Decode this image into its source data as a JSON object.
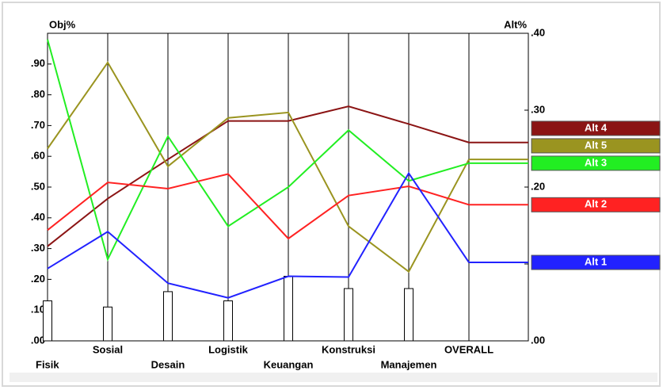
{
  "chart_data": {
    "type": "line",
    "y_label": "Obj%",
    "y2_label": "Alt%",
    "categories": [
      "Fisik",
      "Sosial",
      "Desain",
      "Logistik",
      "Keuangan",
      "Konstruksi",
      "Manajemen",
      "OVERALL"
    ],
    "bar_values": [
      0.13,
      0.11,
      0.16,
      0.13,
      0.21,
      0.17,
      0.17
    ],
    "ylim": [
      0,
      1
    ],
    "yticks": [
      {
        "value": 0,
        "label": ".00"
      },
      {
        "value": 0.1,
        "label": ".10"
      },
      {
        "value": 0.2,
        "label": ".20"
      },
      {
        "value": 0.3,
        "label": ".30"
      },
      {
        "value": 0.4,
        "label": ".40"
      },
      {
        "value": 0.5,
        "label": ".50"
      },
      {
        "value": 0.6,
        "label": ".60"
      },
      {
        "value": 0.7,
        "label": ".70"
      },
      {
        "value": 0.8,
        "label": ".80"
      },
      {
        "value": 0.9,
        "label": ".90"
      }
    ],
    "y2lim": [
      0,
      0.4
    ],
    "y2ticks": [
      {
        "value": 0,
        "label": ".00"
      },
      {
        "value": 0.1,
        "label": ".10"
      },
      {
        "value": 0.2,
        "label": ".20"
      },
      {
        "value": 0.3,
        "label": ".30"
      },
      {
        "value": 0.4,
        "label": ".40"
      }
    ],
    "series": [
      {
        "name": "Alt 4",
        "color": "#8b1414",
        "axis": "y2",
        "values": [
          0.123,
          0.185,
          0.236,
          0.286,
          0.286,
          0.305,
          0.282,
          0.258
        ]
      },
      {
        "name": "Alt 5",
        "color": "#9a9420",
        "axis": "y2",
        "values": [
          0.25,
          0.362,
          0.227,
          0.29,
          0.297,
          0.149,
          0.09,
          0.236
        ]
      },
      {
        "name": "Alt 3",
        "color": "#22ee22",
        "axis": "y2",
        "values": [
          0.392,
          0.106,
          0.266,
          0.149,
          0.2,
          0.274,
          0.208,
          0.231
        ]
      },
      {
        "name": "Alt 2",
        "color": "#ff2222",
        "axis": "y2",
        "values": [
          0.144,
          0.206,
          0.198,
          0.217,
          0.133,
          0.189,
          0.201,
          0.177
        ]
      },
      {
        "name": "Alt 1",
        "color": "#2222ff",
        "axis": "y2",
        "values": [
          0.094,
          0.142,
          0.075,
          0.056,
          0.084,
          0.083,
          0.218,
          0.102
        ]
      }
    ]
  }
}
